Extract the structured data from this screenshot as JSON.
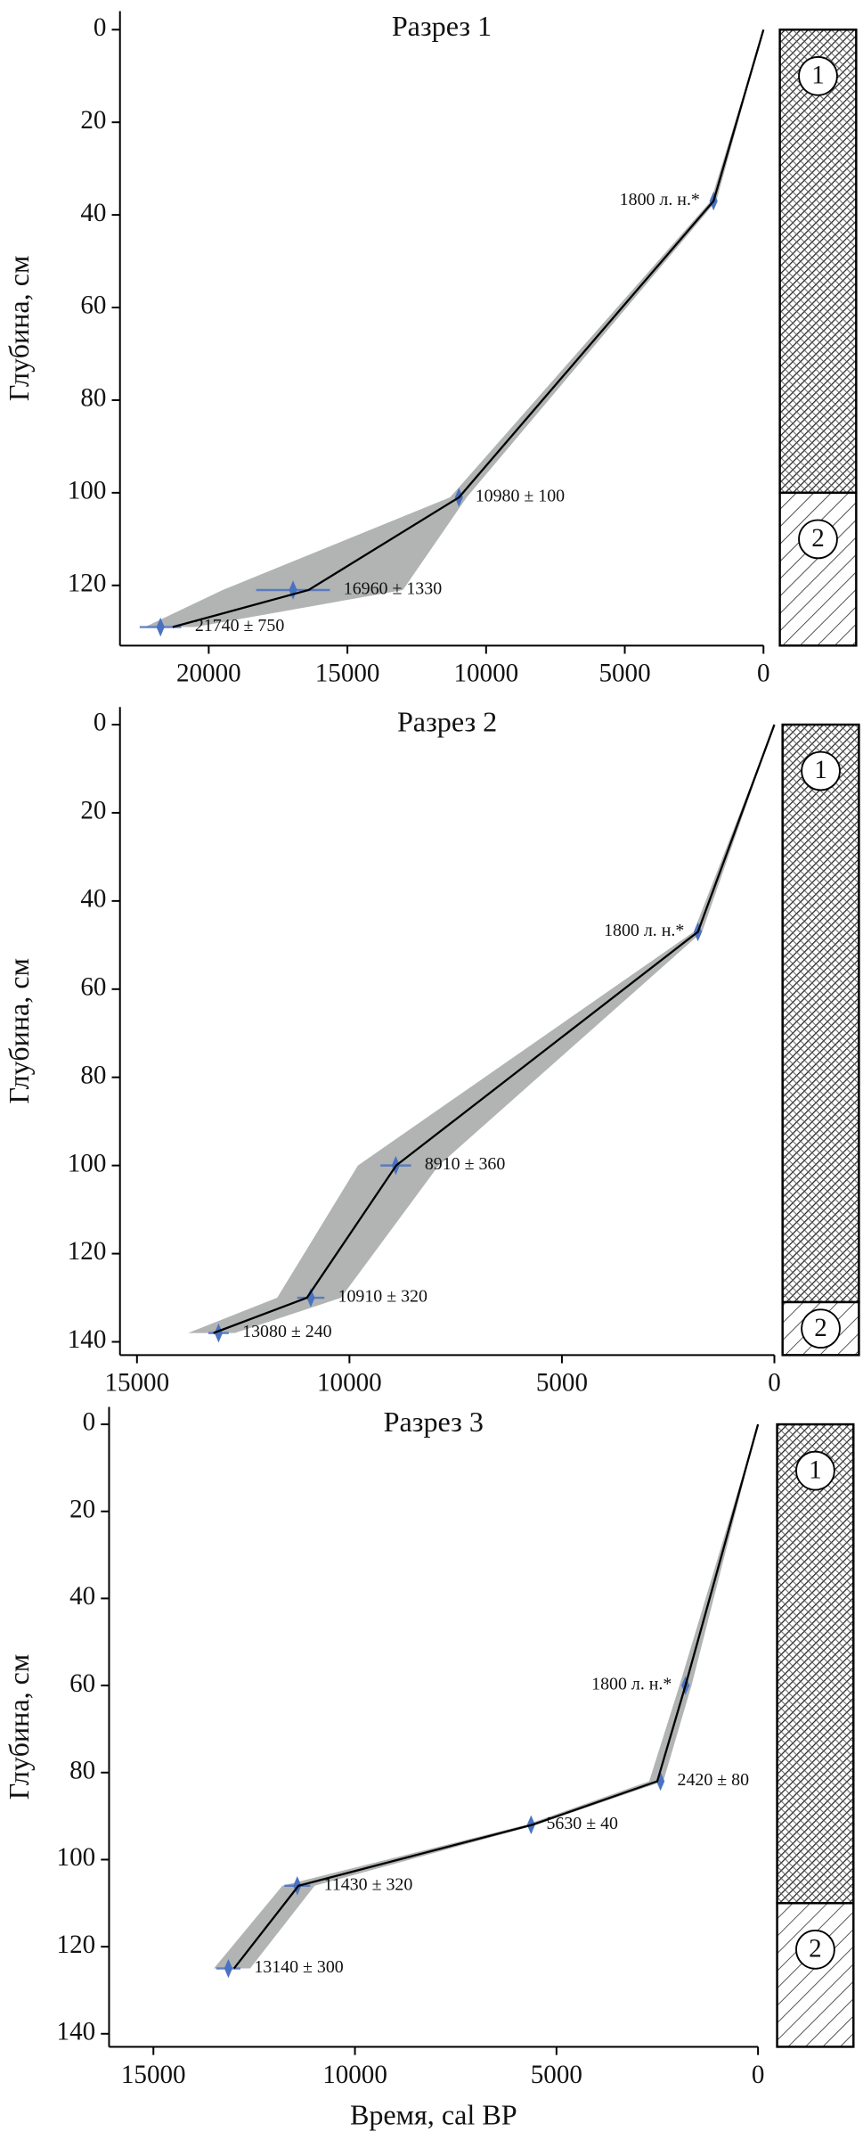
{
  "chart_data": [
    {
      "type": "line",
      "title": "Разрез 1",
      "y_label": "Глубина, см",
      "xlim": [
        23200,
        0
      ],
      "xticks": [
        20000,
        15000,
        10000,
        5000,
        0
      ],
      "ylim": [
        -4,
        133
      ],
      "yticks": [
        0,
        20,
        40,
        60,
        80,
        100,
        120
      ],
      "y_inverted": true,
      "line_color": "#000000",
      "band_color": "#a9acab",
      "date_color": "#4a72c2",
      "model": {
        "x": [
          0,
          1800,
          10980,
          16400,
          21300
        ],
        "y": [
          0,
          37,
          101,
          121,
          129
        ],
        "x_min": [
          0,
          1700,
          10700,
          13000,
          20500
        ],
        "x_max": [
          0,
          1900,
          11300,
          19500,
          22300
        ]
      },
      "dates": {
        "x": [
          1800,
          10980,
          16960,
          21740
        ],
        "y": [
          37,
          101,
          121,
          129
        ],
        "err": [
          null,
          100,
          1330,
          750
        ],
        "labels": [
          "1800 л. н.*",
          "10980 ± 100",
          "16960 ± 1330",
          "21740 ± 750"
        ]
      },
      "layers": {
        "labels": [
          "1",
          "2"
        ],
        "top": [
          0,
          100
        ],
        "bottom": [
          100,
          133
        ]
      }
    },
    {
      "type": "line",
      "title": "Разрез 2",
      "y_label": "Глубина, см",
      "xlim": [
        15400,
        0
      ],
      "xticks": [
        15000,
        10000,
        5000,
        0
      ],
      "ylim": [
        -4,
        143
      ],
      "yticks": [
        0,
        20,
        40,
        60,
        80,
        100,
        120,
        140
      ],
      "y_inverted": true,
      "line_color": "#000000",
      "band_color": "#a9acab",
      "date_color": "#4a72c2",
      "model": {
        "x": [
          0,
          1800,
          8900,
          11000,
          13200
        ],
        "y": [
          0,
          47,
          100,
          130,
          138
        ],
        "x_min": [
          0,
          1700,
          7900,
          10200,
          12700
        ],
        "x_max": [
          0,
          1900,
          9800,
          11700,
          13800
        ]
      },
      "dates": {
        "x": [
          1800,
          8910,
          10910,
          13080
        ],
        "y": [
          47,
          100,
          130,
          138
        ],
        "err": [
          null,
          360,
          320,
          240
        ],
        "labels": [
          "1800 л. н.*",
          "8910 ± 360",
          "10910 ± 320",
          "13080 ± 240"
        ]
      },
      "layers": {
        "labels": [
          "1",
          "2"
        ],
        "top": [
          0,
          131
        ],
        "bottom": [
          131,
          143
        ]
      }
    },
    {
      "type": "line",
      "title": "Разрез 3",
      "y_label": "Глубина, см",
      "x_label": "Время, cal BP",
      "xlim": [
        16100,
        0
      ],
      "xticks": [
        15000,
        10000,
        5000,
        0
      ],
      "ylim": [
        -4,
        143
      ],
      "yticks": [
        0,
        20,
        40,
        60,
        80,
        100,
        120,
        140
      ],
      "y_inverted": true,
      "line_color": "#000000",
      "band_color": "#a9acab",
      "date_color": "#4a72c2",
      "model": {
        "x": [
          0,
          1800,
          2500,
          5600,
          11400,
          13000
        ],
        "y": [
          0,
          60,
          82,
          92,
          106,
          125
        ],
        "x_min": [
          0,
          1650,
          2350,
          5500,
          11000,
          12600
        ],
        "x_max": [
          0,
          1950,
          2700,
          5750,
          11800,
          13500
        ]
      },
      "dates": {
        "x": [
          1800,
          2420,
          5630,
          11430,
          13140
        ],
        "y": [
          60,
          82,
          92,
          106,
          125
        ],
        "err": [
          null,
          80,
          40,
          320,
          300
        ],
        "labels": [
          "1800 л. н.*",
          "2420 ± 80",
          "5630 ± 40",
          "11430 ± 320",
          "13140 ± 300"
        ]
      },
      "layers": {
        "labels": [
          "1",
          "2"
        ],
        "top": [
          0,
          110
        ],
        "bottom": [
          110,
          143
        ]
      }
    }
  ]
}
